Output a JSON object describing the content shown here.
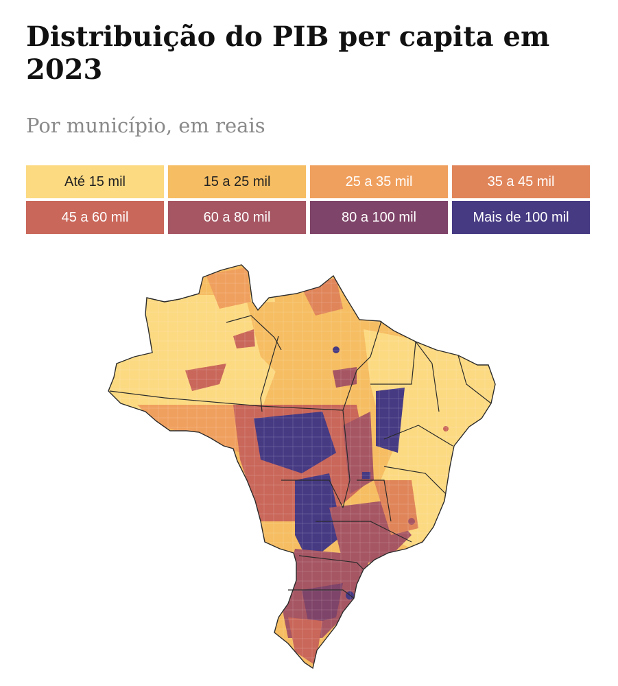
{
  "title": "Distribuição do PIB per capita em 2023",
  "subtitle": "Por município, em reais",
  "legend": [
    {
      "label": "Até 15 mil",
      "color": "#FCDA82",
      "text_color": "#222222"
    },
    {
      "label": "15 a 25 mil",
      "color": "#F6BD62",
      "text_color": "#222222"
    },
    {
      "label": "25 a 35 mil",
      "color": "#F0A05E",
      "text_color": "#ffffff"
    },
    {
      "label": "35 a 45 mil",
      "color": "#E0855A",
      "text_color": "#ffffff"
    },
    {
      "label": "45 a 60 mil",
      "color": "#C9675A",
      "text_color": "#ffffff"
    },
    {
      "label": "60 a 80 mil",
      "color": "#A65663",
      "text_color": "#ffffff"
    },
    {
      "label": "80 a 100 mil",
      "color": "#7F4469",
      "text_color": "#ffffff"
    },
    {
      "label": "Mais de 100 mil",
      "color": "#463A83",
      "text_color": "#ffffff"
    }
  ],
  "map": {
    "country": "Brasil",
    "border_color": "#2b2b2b",
    "municipality_line_color": "#ffffff"
  }
}
